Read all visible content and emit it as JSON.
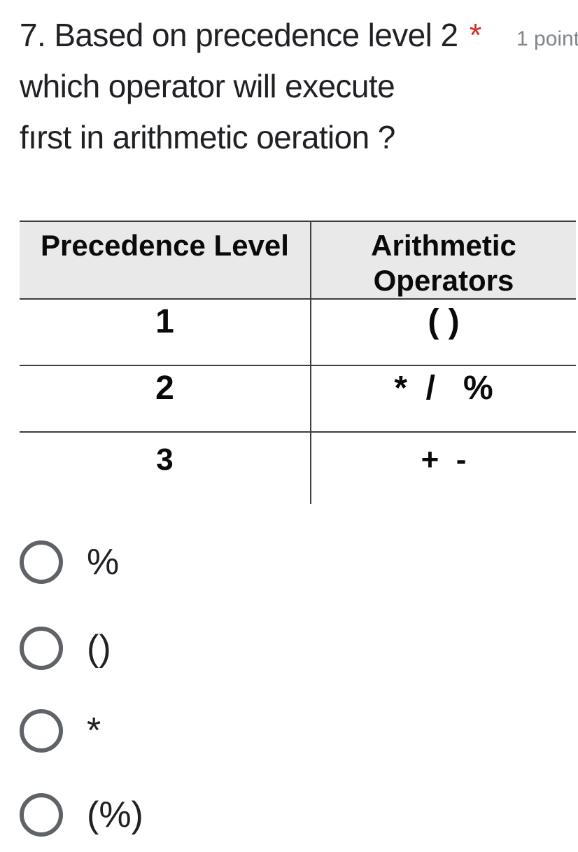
{
  "question": {
    "title_line1": "7. Based on precedence level 2",
    "required_marker": "*",
    "points_label": "1 point",
    "title_line2": "which operator will execute",
    "title_line3": "fırst in arithmetic oeration ?"
  },
  "table": {
    "col1_header": "Precedence Level",
    "col2_header": "Arithmetic\nOperators",
    "rows": [
      {
        "level": "1",
        "operators": "( )"
      },
      {
        "level": "2",
        "operators": "*  /   %"
      },
      {
        "level": "3",
        "operators": "+  -"
      }
    ]
  },
  "options": [
    {
      "label": "%"
    },
    {
      "label": "()"
    },
    {
      "label": "*"
    },
    {
      "label": "(%)"
    }
  ],
  "colors": {
    "question_text": "#202124",
    "required_red": "#d03028",
    "points_gray": "#80868b",
    "table_border": "#3b3e42",
    "table_header_bg": "#e9e9e9",
    "radio_gray": "#5f6368"
  }
}
